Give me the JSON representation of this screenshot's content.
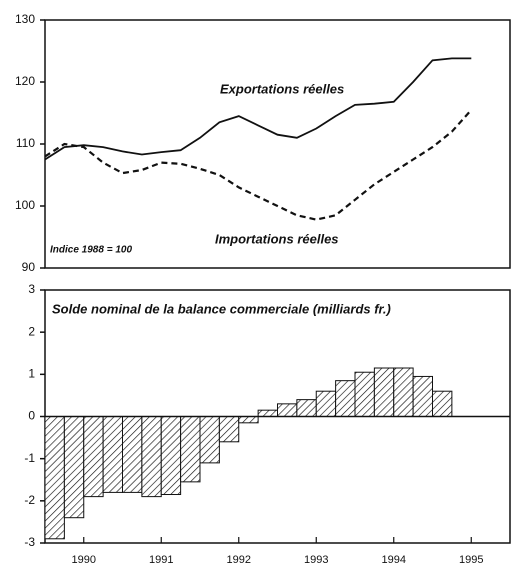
{
  "chart_data": [
    {
      "type": "line",
      "annotations": [
        "Exportations réelles",
        "Importations réelles",
        "Indice 1988 = 100"
      ],
      "x": [
        1989.5,
        1989.75,
        1990,
        1990.25,
        1990.5,
        1990.75,
        1991,
        1991.25,
        1991.5,
        1991.75,
        1992,
        1992.25,
        1992.5,
        1992.75,
        1993,
        1993.25,
        1993.5,
        1993.75,
        1994,
        1994.25,
        1994.5,
        1994.75,
        1995
      ],
      "series": [
        {
          "name": "Exportations réelles",
          "color": "#111111",
          "dash": false,
          "values": [
            107.5,
            109.5,
            109.8,
            109.5,
            108.8,
            108.3,
            108.7,
            109,
            111,
            113.5,
            114.5,
            113,
            111.5,
            111,
            112.5,
            114.5,
            116.3,
            116.5,
            116.8,
            120,
            123.5,
            123.8,
            123.8
          ]
        },
        {
          "name": "Importations réelles",
          "color": "#111111",
          "dash": true,
          "values": [
            108,
            110,
            109.5,
            107,
            105.3,
            105.8,
            107,
            106.8,
            106,
            105,
            103,
            101.5,
            100,
            98.5,
            97.8,
            98.5,
            101,
            103.5,
            105.5,
            107.5,
            109.5,
            112,
            115.5
          ]
        }
      ],
      "xlim": [
        1989.5,
        1995.5
      ],
      "ylim": [
        90,
        130
      ],
      "yticks": [
        90,
        100,
        110,
        120,
        130
      ]
    },
    {
      "type": "bar",
      "title": "Solde nominal de la balance commerciale (milliards fr.)",
      "x": [
        1989.625,
        1989.875,
        1990.125,
        1990.375,
        1990.625,
        1990.875,
        1991.125,
        1991.375,
        1991.625,
        1991.875,
        1992.125,
        1992.375,
        1992.625,
        1992.875,
        1993.125,
        1993.375,
        1993.625,
        1993.875,
        1994.125,
        1994.375,
        1994.625
      ],
      "values": [
        -2.9,
        -2.4,
        -1.9,
        -1.8,
        -1.8,
        -1.9,
        -1.85,
        -1.55,
        -1.1,
        -0.6,
        -0.15,
        0.15,
        0.3,
        0.4,
        0.6,
        0.85,
        1.05,
        1.15,
        1.15,
        0.95,
        0.6
      ],
      "color": "#111111",
      "xlim": [
        1989.5,
        1995.5
      ],
      "xticks": [
        1990,
        1991,
        1992,
        1993,
        1994,
        1995
      ],
      "ylim": [
        -3,
        3
      ],
      "yticks": [
        -3,
        -2,
        -1,
        0,
        1,
        2,
        3
      ]
    }
  ]
}
